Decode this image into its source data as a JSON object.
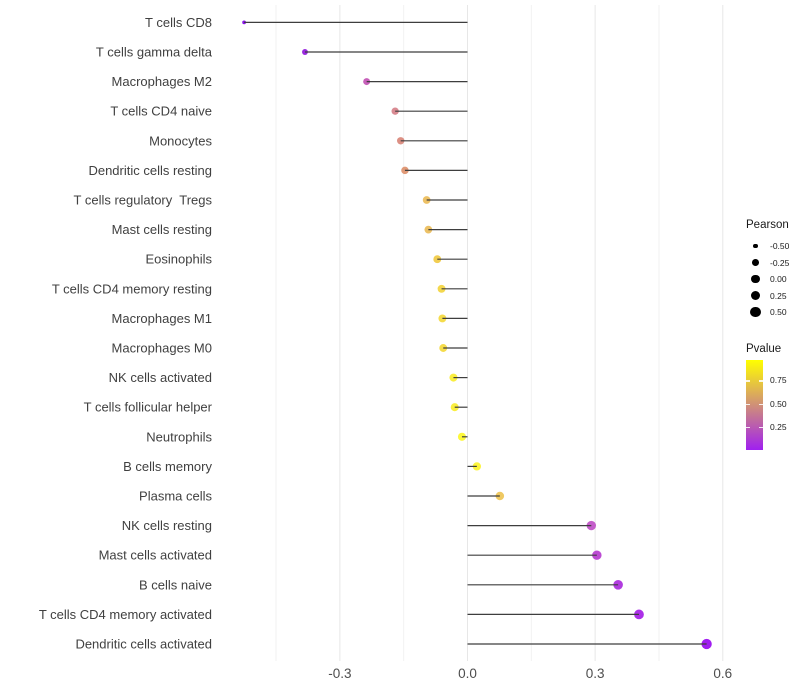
{
  "chart_data": {
    "type": "lollipop",
    "title": "",
    "xlabel": "",
    "ylabel": "",
    "x_tick_values": [
      -0.3,
      0.0,
      0.3,
      0.6
    ],
    "x_tick_labels": [
      "-0.3",
      "0.0",
      "0.3",
      "0.6"
    ],
    "x_minor_gridlines": [
      -0.45,
      -0.15,
      0.15,
      0.45
    ],
    "xlim": [
      -0.58,
      0.62
    ],
    "grid": "on",
    "legend_position": "right",
    "categories": [
      "T cells CD8",
      "T cells gamma delta",
      "Macrophages M2",
      "T cells CD4 naive",
      "Monocytes",
      "Dendritic cells resting",
      "T cells regulatory  Tregs",
      "Mast cells resting",
      "Eosinophils",
      "T cells CD4 memory resting",
      "Macrophages M1",
      "Macrophages M0",
      "NK cells activated",
      "T cells follicular helper",
      "Neutrophils",
      "B cells memory",
      "Plasma cells",
      "NK cells resting",
      "Mast cells activated",
      "B cells naive",
      "T cells CD4 memory activated",
      "Dendritic cells activated"
    ],
    "series": [
      {
        "name": "Pearson",
        "values": [
          -0.525,
          -0.382,
          -0.237,
          -0.17,
          -0.157,
          -0.147,
          -0.096,
          -0.092,
          -0.071,
          -0.061,
          -0.059,
          -0.057,
          -0.033,
          -0.03,
          -0.013,
          0.022,
          0.076,
          0.291,
          0.304,
          0.354,
          0.403,
          0.562
        ]
      },
      {
        "name": "Pvalue_estimated_from_color",
        "values": [
          0.01,
          0.05,
          0.27,
          0.45,
          0.48,
          0.52,
          0.68,
          0.68,
          0.75,
          0.8,
          0.81,
          0.81,
          0.86,
          0.86,
          0.93,
          0.9,
          0.72,
          0.27,
          0.19,
          0.13,
          0.08,
          0.01
        ]
      }
    ],
    "point_colors": [
      "#8A15E9",
      "#9929DF",
      "#C760BA",
      "#D98B93",
      "#DC9084",
      "#E09A78",
      "#EDC166",
      "#ECC166",
      "#F2CE52",
      "#F4D84E",
      "#F5DC4B",
      "#F5DC4B",
      "#FAEE3F",
      "#FAEE3F",
      "#FDF83A",
      "#FCF43D",
      "#EFC963",
      "#C45ECA",
      "#BC4BD3",
      "#B13CDF",
      "#AC30E8",
      "#A01DF0"
    ],
    "stick_color": "#3E3E3E",
    "axis_text_color": "#4D4D4D",
    "gridline_major_color": "#E7E7E7",
    "gridline_minor_color": "#F2F2F2",
    "size_legend": {
      "title": "Pearson",
      "labels": [
        "-0.50",
        "-0.25",
        "0.00",
        "0.25",
        "0.50"
      ],
      "values": [
        -0.5,
        -0.25,
        0.0,
        0.25,
        0.5
      ],
      "dot_color": "#000000"
    },
    "color_legend": {
      "title": "Pvalue",
      "labels": [
        "0.75",
        "0.50",
        "0.25"
      ],
      "values": [
        0.75,
        0.5,
        0.25
      ],
      "low_color": "#A020F0",
      "high_color": "#FFFF00",
      "range": [
        0.0,
        0.97
      ]
    }
  }
}
